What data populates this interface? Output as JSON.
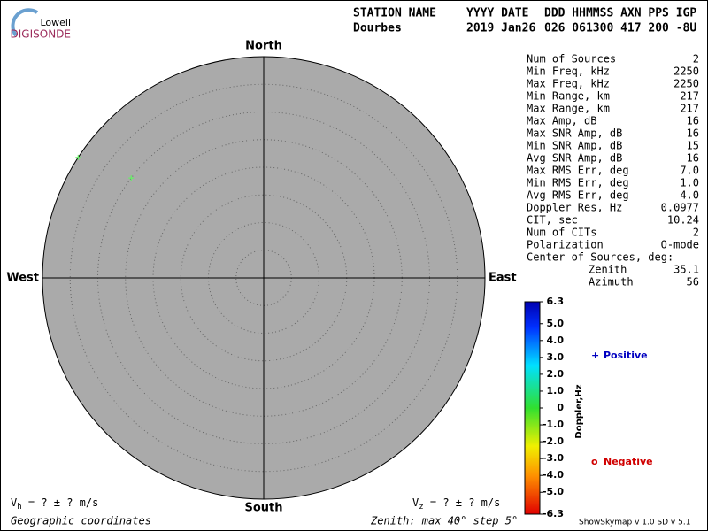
{
  "header": {
    "logo_top": "Lowell",
    "logo_bottom": "DIGISONDE",
    "labels": [
      "STATION NAME",
      "YYYY DATE",
      "DDD HHMMSS AXN PPS IGP"
    ],
    "values": [
      "Dourbes",
      "2019 Jan26",
      "026 061300 417 200 -8U"
    ]
  },
  "compass": {
    "north": "North",
    "south": "South",
    "east": "East",
    "west": "West"
  },
  "sources": {
    "zenith_lim": [
      0,
      40
    ],
    "color": "#66ee66",
    "points": [
      {
        "zenith": 40,
        "azimuth": 303
      },
      {
        "zenith": 30,
        "azimuth": 307
      }
    ]
  },
  "stats": [
    [
      "Num of Sources",
      "2"
    ],
    [
      "Min Freq, kHz",
      "2250"
    ],
    [
      "Max Freq, kHz",
      "2250"
    ],
    [
      "Min Range, km",
      "217"
    ],
    [
      "Max Range, km",
      "217"
    ],
    [
      "Max Amp, dB",
      "16"
    ],
    [
      "Max SNR Amp, dB",
      "16"
    ],
    [
      "Min SNR Amp, dB",
      "15"
    ],
    [
      "Avg SNR Amp, dB",
      "16"
    ],
    [
      "Max RMS Err, deg",
      "7.0"
    ],
    [
      "Min RMS Err, deg",
      "1.0"
    ],
    [
      "Avg RMS Err, deg",
      "4.0"
    ],
    [
      "Doppler Res, Hz",
      "0.0977"
    ],
    [
      "CIT, sec",
      "10.24"
    ],
    [
      "Num of CITs",
      "2"
    ],
    [
      "Polarization",
      "O-mode"
    ]
  ],
  "center": {
    "title": "Center of Sources, deg:",
    "zenith": [
      "Zenith",
      "35.1"
    ],
    "azimuth": [
      "Azimuth",
      "56"
    ]
  },
  "colorbar": {
    "title": "Doppler,Hz",
    "lim": [
      -6.3,
      6.3
    ],
    "ticks": [
      6.3,
      {
        "value": 5,
        "label": "5.0"
      },
      {
        "value": 4,
        "label": "4.0"
      },
      {
        "value": 3,
        "label": "3.0"
      },
      {
        "value": 2,
        "label": "2.0"
      },
      {
        "value": 1,
        "label": "1.0"
      },
      0,
      {
        "value": -1,
        "label": "-1.0"
      },
      {
        "value": -2,
        "label": "-2.0"
      },
      {
        "value": -3,
        "label": "-3.0"
      },
      {
        "value": -4,
        "label": "-4.0"
      },
      {
        "value": -5,
        "label": "-5.0"
      },
      -6.3
    ]
  },
  "legend": {
    "positive": {
      "symbol": "+",
      "label": "Positive"
    },
    "negative": {
      "symbol": "o",
      "label": "Negative"
    }
  },
  "footer": {
    "vh": [
      "V",
      "h",
      " =  ? ±  ? m/s"
    ],
    "vz": [
      "V",
      "z",
      " =  ? ±  ? m/s"
    ],
    "coords": "Geographic coordinates",
    "zenith": "Zenith: max 40°  step 5°",
    "version": "ShowSkymap v 1.0  SD v 5.1"
  }
}
